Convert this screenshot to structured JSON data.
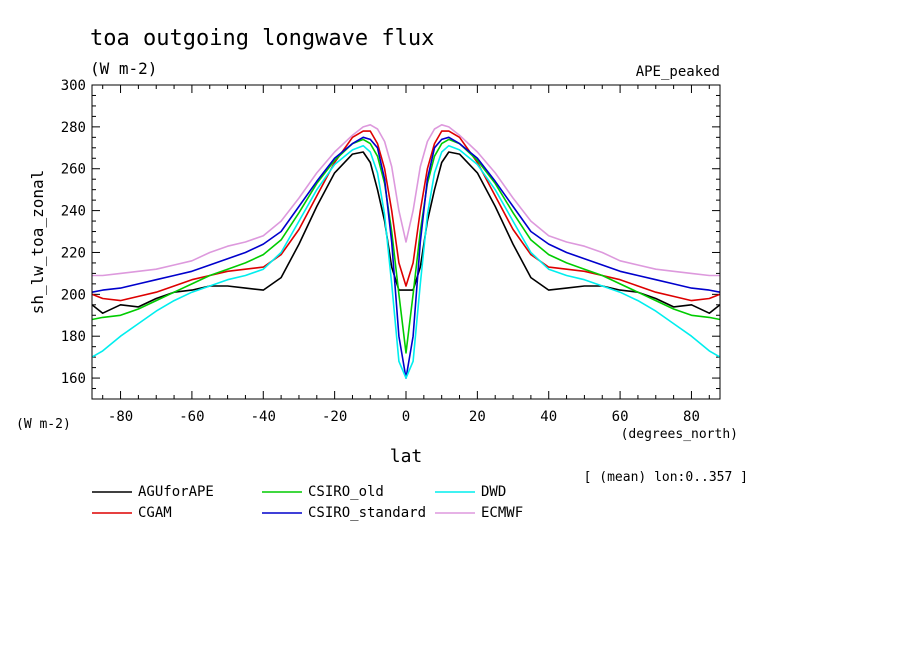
{
  "chart_data": {
    "type": "line",
    "title": "toa outgoing longwave flux",
    "subtitle": "(W m-2)",
    "experiment": "APE_peaked",
    "ylabel": "sh_lw_toa_zonal",
    "yunits": "(W m-2)",
    "xlabel": "lat",
    "xunits": "(degrees_north)",
    "footnote": "[ (mean) lon:0..357 ]",
    "xlim": [
      -88,
      88
    ],
    "ylim": [
      150,
      300
    ],
    "xticks": [
      -80,
      -60,
      -40,
      -20,
      0,
      20,
      40,
      60,
      80
    ],
    "yticks": [
      160,
      180,
      200,
      220,
      240,
      260,
      280,
      300
    ],
    "grid": false,
    "legend_position": "bottom",
    "x": [
      -88,
      -85,
      -80,
      -75,
      -70,
      -65,
      -60,
      -55,
      -50,
      -45,
      -40,
      -35,
      -30,
      -25,
      -20,
      -15,
      -12,
      -10,
      -8,
      -6,
      -4,
      -2,
      0,
      2,
      4,
      6,
      8,
      10,
      12,
      15,
      20,
      25,
      30,
      35,
      40,
      45,
      50,
      55,
      60,
      65,
      70,
      75,
      80,
      85,
      88
    ],
    "series": [
      {
        "name": "AGUforAPE",
        "color": "#000000",
        "values": [
          195,
          191,
          195,
          194,
          198,
          201,
          202,
          204,
          204,
          203,
          202,
          208,
          224,
          242,
          258,
          267,
          268,
          263,
          250,
          235,
          213,
          202,
          202,
          202,
          213,
          235,
          250,
          263,
          268,
          267,
          258,
          242,
          224,
          208,
          202,
          203,
          204,
          204,
          202,
          201,
          198,
          194,
          195,
          191,
          195
        ]
      },
      {
        "name": "CGAM",
        "color": "#dd0000",
        "values": [
          200,
          198,
          197,
          199,
          201,
          204,
          207,
          209,
          211,
          212,
          213,
          219,
          231,
          247,
          263,
          275,
          278,
          278,
          272,
          260,
          240,
          215,
          204,
          215,
          240,
          260,
          272,
          278,
          278,
          275,
          263,
          247,
          231,
          219,
          213,
          212,
          211,
          209,
          207,
          204,
          201,
          199,
          197,
          198,
          200
        ]
      },
      {
        "name": "CSIRO_old",
        "color": "#00cc00",
        "values": [
          188,
          189,
          190,
          193,
          197,
          201,
          205,
          209,
          212,
          215,
          219,
          226,
          239,
          253,
          264,
          272,
          274,
          272,
          266,
          253,
          230,
          200,
          172,
          200,
          230,
          253,
          266,
          272,
          274,
          272,
          264,
          253,
          239,
          226,
          219,
          215,
          212,
          209,
          205,
          201,
          197,
          193,
          190,
          189,
          188
        ]
      },
      {
        "name": "CSIRO_standard",
        "color": "#0000cc",
        "values": [
          201,
          202,
          203,
          205,
          207,
          209,
          211,
          214,
          217,
          220,
          224,
          230,
          242,
          254,
          265,
          272,
          275,
          274,
          270,
          255,
          225,
          180,
          160,
          180,
          225,
          255,
          270,
          274,
          275,
          272,
          265,
          254,
          242,
          230,
          224,
          220,
          217,
          214,
          211,
          209,
          207,
          205,
          203,
          202,
          201
        ]
      },
      {
        "name": "DWD",
        "color": "#00eeee",
        "values": [
          170,
          173,
          180,
          186,
          192,
          197,
          201,
          204,
          207,
          209,
          212,
          220,
          235,
          250,
          262,
          269,
          271,
          268,
          258,
          238,
          205,
          168,
          160,
          168,
          205,
          238,
          258,
          268,
          271,
          269,
          262,
          250,
          235,
          220,
          212,
          209,
          207,
          204,
          201,
          197,
          192,
          186,
          180,
          173,
          170
        ]
      },
      {
        "name": "ECMWF",
        "color": "#dd99dd",
        "values": [
          209,
          209,
          210,
          211,
          212,
          214,
          216,
          220,
          223,
          225,
          228,
          235,
          246,
          258,
          268,
          276,
          280,
          281,
          279,
          273,
          261,
          240,
          225,
          240,
          261,
          273,
          279,
          281,
          280,
          276,
          268,
          258,
          246,
          235,
          228,
          225,
          223,
          220,
          216,
          214,
          212,
          211,
          210,
          209,
          209
        ]
      }
    ]
  }
}
